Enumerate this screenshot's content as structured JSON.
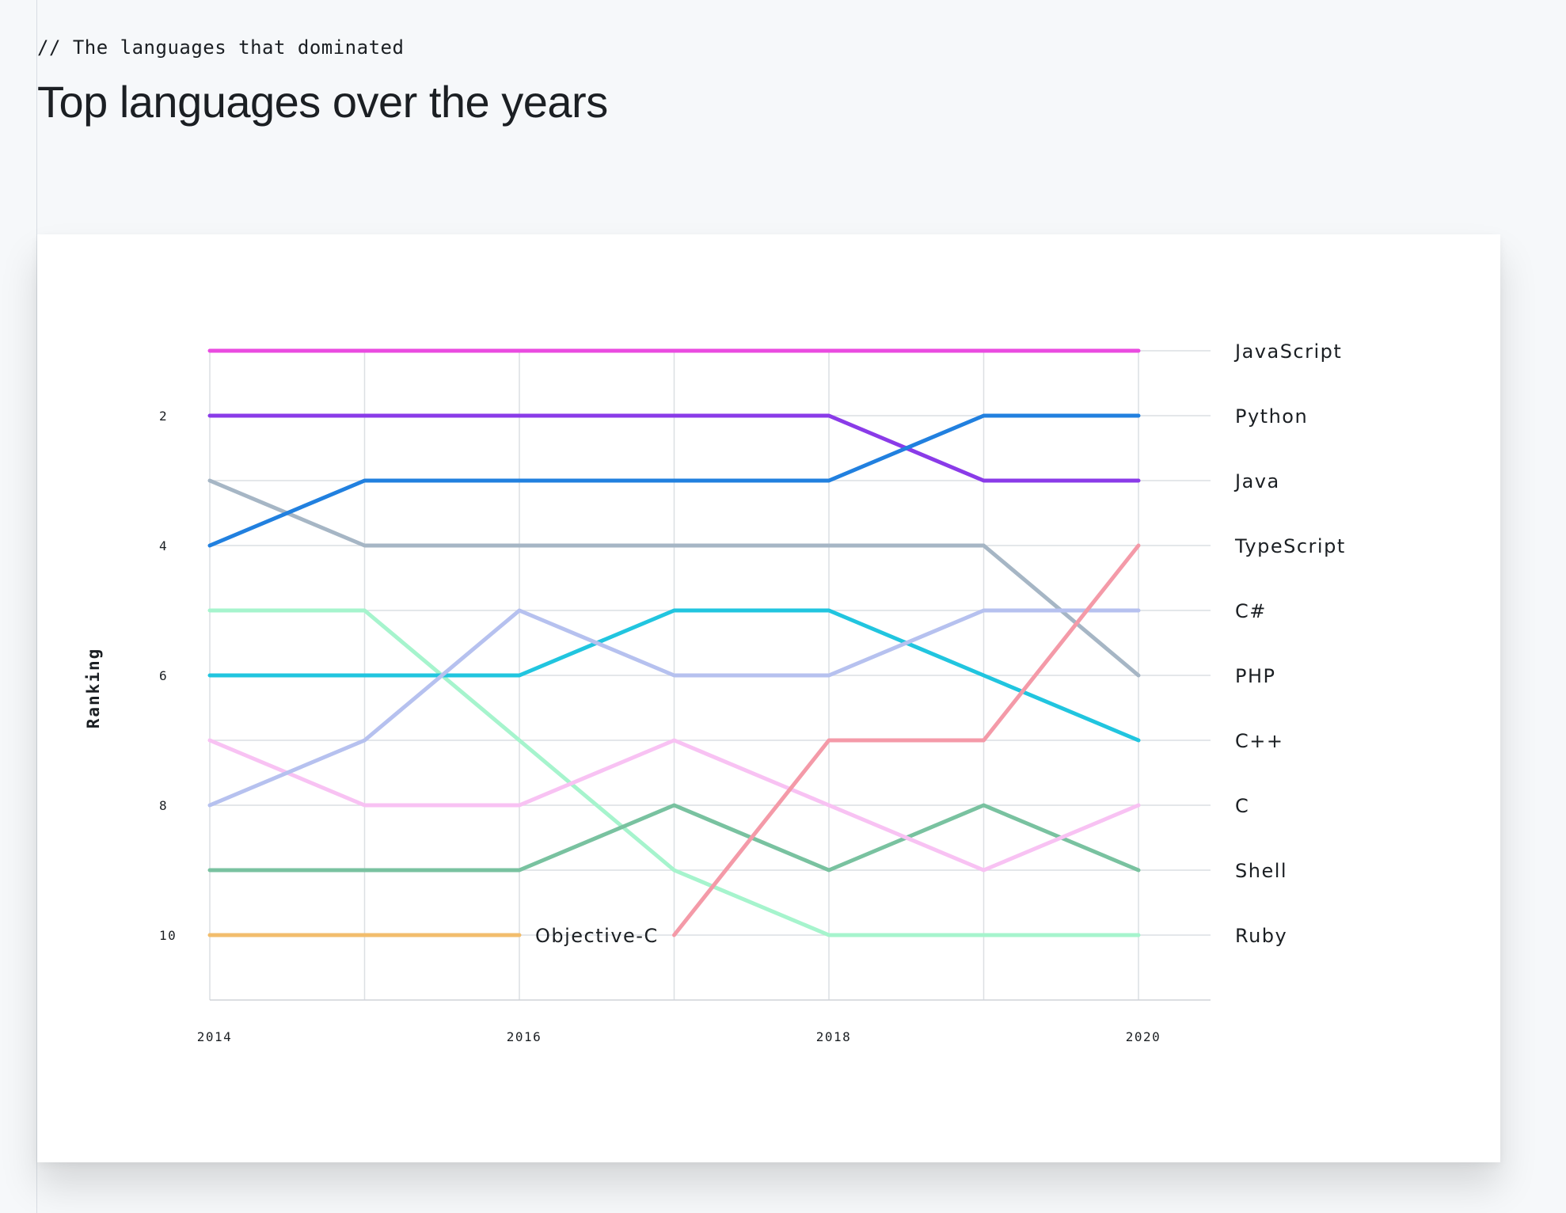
{
  "header": {
    "eyebrow": "// The languages that dominated",
    "title": "Top languages over the years"
  },
  "chart_data": {
    "type": "line",
    "title": "Top languages over the years",
    "xlabel": "",
    "ylabel": "Ranking",
    "x": [
      2014,
      2015,
      2016,
      2017,
      2018,
      2019,
      2020
    ],
    "xticks": [
      "2014",
      "2016",
      "2018",
      "2020"
    ],
    "yticks": [
      "2",
      "4",
      "6",
      "8",
      "10"
    ],
    "xlim": [
      2014,
      2020.47
    ],
    "ylim": [
      11,
      1
    ],
    "y_inverted": true,
    "grid": true,
    "series": [
      {
        "name": "JavaScript",
        "color": "#ea4be0",
        "values": [
          1,
          1,
          1,
          1,
          1,
          1,
          1
        ]
      },
      {
        "name": "Python",
        "color": "#2180df",
        "values": [
          4,
          3,
          3,
          3,
          3,
          2,
          2
        ]
      },
      {
        "name": "Java",
        "color": "#8a3be8",
        "values": [
          2,
          2,
          2,
          2,
          2,
          3,
          3
        ]
      },
      {
        "name": "TypeScript",
        "color": "#f49aa8",
        "values": [
          null,
          null,
          null,
          10,
          7,
          7,
          4
        ]
      },
      {
        "name": "C#",
        "color": "#b6c1ef",
        "values": [
          8,
          7,
          5,
          6,
          6,
          5,
          5
        ]
      },
      {
        "name": "PHP",
        "color": "#a6b6c5",
        "values": [
          3,
          4,
          4,
          4,
          4,
          4,
          6
        ]
      },
      {
        "name": "C++",
        "color": "#21c5df",
        "values": [
          6,
          6,
          6,
          5,
          5,
          6,
          7
        ]
      },
      {
        "name": "C",
        "color": "#f8c2f3",
        "values": [
          7,
          8,
          8,
          7,
          8,
          9,
          8
        ]
      },
      {
        "name": "Shell",
        "color": "#79c2a0",
        "values": [
          9,
          9,
          9,
          8,
          9,
          8,
          9
        ]
      },
      {
        "name": "Ruby",
        "color": "#a6f4cd",
        "values": [
          5,
          5,
          7,
          9,
          10,
          10,
          10
        ]
      },
      {
        "name": "Objective-C",
        "color": "#f2bd6c",
        "values": [
          10,
          10,
          10,
          null,
          null,
          null,
          null
        ]
      }
    ]
  }
}
